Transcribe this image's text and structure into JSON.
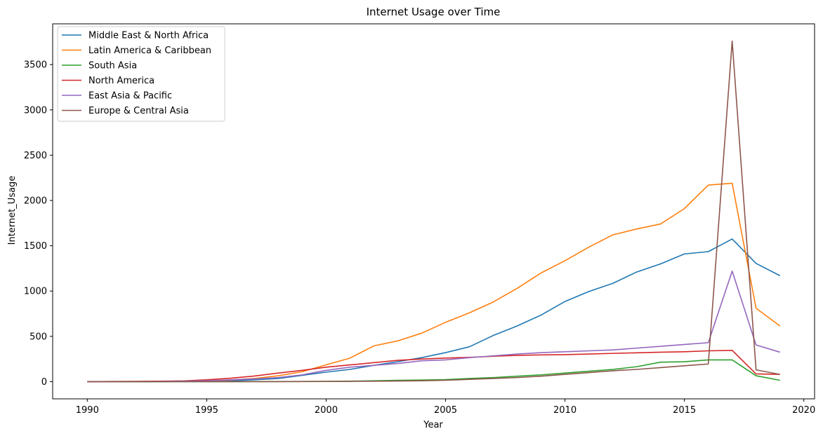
{
  "chart_data": {
    "type": "line",
    "title": "Internet Usage over Time",
    "xlabel": "Year",
    "ylabel": "Internet_Usage",
    "xlim": [
      1988.55,
      2020.45
    ],
    "ylim": [
      -190,
      3950
    ],
    "xticks": [
      1990,
      1995,
      2000,
      2005,
      2010,
      2015,
      2020
    ],
    "yticks": [
      0,
      500,
      1000,
      1500,
      2000,
      2500,
      3000,
      3500
    ],
    "legend_position": "top-left",
    "grid": false,
    "x": [
      1990,
      1991,
      1992,
      1993,
      1994,
      1995,
      1996,
      1997,
      1998,
      1999,
      2000,
      2001,
      2002,
      2003,
      2004,
      2005,
      2006,
      2007,
      2008,
      2009,
      2010,
      2011,
      2012,
      2013,
      2014,
      2015,
      2016,
      2017,
      2018,
      2019
    ],
    "series": [
      {
        "name": "Middle East & North Africa",
        "color": "#1f77b4",
        "values": [
          0,
          0,
          0,
          1,
          2,
          4,
          10,
          20,
          35,
          70,
          105,
          135,
          180,
          220,
          265,
          320,
          385,
          510,
          615,
          735,
          885,
          995,
          1085,
          1210,
          1300,
          1410,
          1435,
          1575,
          1305,
          1170
        ]
      },
      {
        "name": "Latin America & Caribbean",
        "color": "#ff7f0e",
        "values": [
          0,
          0,
          1,
          2,
          4,
          8,
          18,
          35,
          65,
          110,
          185,
          260,
          395,
          450,
          535,
          655,
          760,
          880,
          1030,
          1200,
          1335,
          1485,
          1620,
          1685,
          1740,
          1910,
          2170,
          2190,
          810,
          615
        ]
      },
      {
        "name": "South Asia",
        "color": "#2ca02c",
        "values": [
          0,
          0,
          0,
          0,
          0,
          0,
          0,
          1,
          1,
          2,
          3,
          5,
          10,
          15,
          18,
          22,
          35,
          45,
          60,
          75,
          95,
          115,
          135,
          165,
          215,
          220,
          240,
          240,
          65,
          15
        ]
      },
      {
        "name": "North America",
        "color": "#d62728",
        "values": [
          0,
          2,
          3,
          5,
          8,
          20,
          38,
          62,
          95,
          125,
          160,
          185,
          210,
          235,
          250,
          260,
          268,
          280,
          290,
          295,
          298,
          305,
          312,
          318,
          325,
          330,
          340,
          345,
          85,
          80
        ]
      },
      {
        "name": "East Asia & Pacific",
        "color": "#9467bd",
        "values": [
          0,
          0,
          1,
          2,
          5,
          10,
          20,
          30,
          45,
          75,
          125,
          160,
          180,
          200,
          230,
          240,
          265,
          285,
          305,
          320,
          330,
          340,
          350,
          370,
          390,
          410,
          430,
          1220,
          405,
          325
        ]
      },
      {
        "name": "Europe & Central Asia",
        "color": "#8c564b",
        "values": [
          0,
          0,
          0,
          0,
          0,
          0,
          0,
          0,
          0,
          1,
          2,
          3,
          5,
          7,
          10,
          15,
          25,
          35,
          45,
          60,
          80,
          100,
          120,
          135,
          155,
          175,
          195,
          3760,
          130,
          80
        ]
      }
    ]
  }
}
